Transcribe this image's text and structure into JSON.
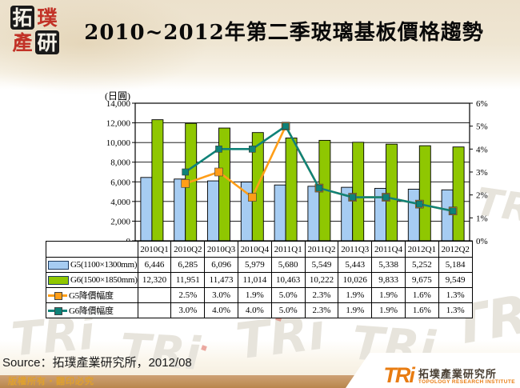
{
  "title": "2010~2012年第二季玻璃基板價格趨勢",
  "seal_logo": {
    "char_tl": "拓",
    "char_tr": "璞",
    "char_bl": "產",
    "char_br": "研"
  },
  "watermark": {
    "text": "TRi"
  },
  "chart_data": {
    "type": "bar",
    "title": "2010~2012年第二季玻璃基板價格趨勢",
    "categories": [
      "2010Q1",
      "2010Q2",
      "2010Q3",
      "2010Q4",
      "2011Q1",
      "2011Q2",
      "2011Q3",
      "2011Q4",
      "2012Q1",
      "2012Q2"
    ],
    "series": [
      {
        "name": "G5(1100×1300mm)",
        "kind": "bar",
        "axis": "left",
        "color": "#A6CCF2",
        "border": "#000000",
        "values": [
          6446,
          6285,
          6096,
          5979,
          5680,
          5549,
          5443,
          5338,
          5252,
          5184
        ]
      },
      {
        "name": "G6(1500×1850mm)",
        "kind": "bar",
        "axis": "left",
        "color": "#8FC701",
        "border": "#000000",
        "values": [
          12320,
          11951,
          11473,
          11014,
          10463,
          10222,
          10026,
          9833,
          9675,
          9549
        ]
      },
      {
        "name": "G5降價幅度",
        "kind": "line",
        "axis": "right",
        "color": "#FF9E18",
        "values": [
          null,
          2.5,
          3.0,
          1.9,
          5.0,
          2.3,
          1.9,
          1.9,
          1.6,
          1.3
        ]
      },
      {
        "name": "G6降價幅度",
        "kind": "line",
        "axis": "right",
        "color": "#0F8278",
        "values": [
          null,
          3.0,
          4.0,
          4.0,
          5.0,
          2.3,
          1.9,
          1.9,
          1.6,
          1.3
        ]
      }
    ],
    "left_axis": {
      "label": "(日圓)",
      "min": 0,
      "max": 14000,
      "step": 2000
    },
    "right_axis": {
      "min": 0,
      "max": 6,
      "step": 1,
      "suffix": "%"
    },
    "grid": true,
    "legend_position": "table-left"
  },
  "source_line": "Source：拓璞產業研究所，2012/08",
  "footer": {
    "copyright": "版權所有‧翻印必究",
    "logo": {
      "acronym": "TRi",
      "company_cn": "拓墣產業研究所",
      "company_en": "TOPOLOGY RESEARCH INSTITUTE"
    }
  }
}
